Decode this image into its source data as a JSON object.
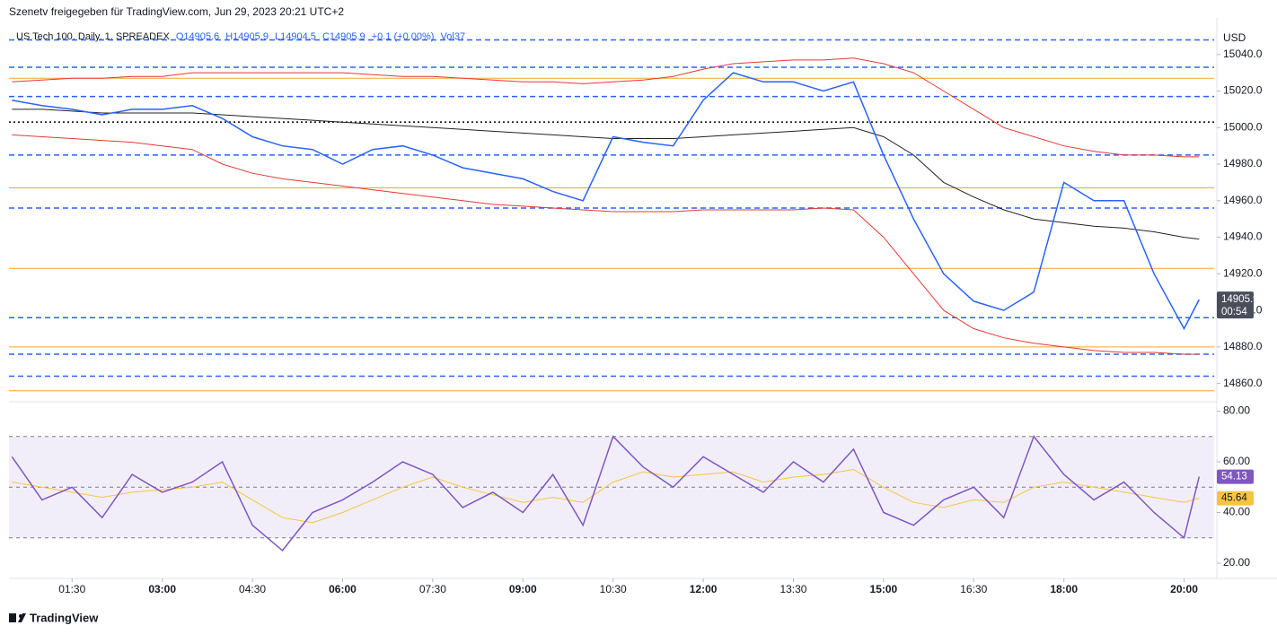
{
  "header": {
    "title": "Szenetv freigegeben für TradingView.com, Jun 29, 2023 20:21 UTC+2"
  },
  "legend": {
    "symbol": "US Tech 100, Daily, 1, SPREADEX",
    "ohlc": [
      "O14905.6",
      "H14905.9",
      "L14904.5",
      "C14905.9",
      "+0.1 (+0.00%)"
    ],
    "volume": "Vol37"
  },
  "footer": {
    "brand": "TradingView"
  },
  "chart_data": [
    {
      "type": "line",
      "unit": "USD",
      "countdown": "00:54",
      "x": [
        "00:30",
        "01:00",
        "01:30",
        "02:00",
        "02:30",
        "03:00",
        "03:30",
        "04:00",
        "04:30",
        "05:00",
        "05:30",
        "06:00",
        "06:30",
        "07:00",
        "07:30",
        "08:00",
        "08:30",
        "09:00",
        "09:30",
        "10:00",
        "10:30",
        "11:00",
        "11:30",
        "12:00",
        "12:30",
        "13:00",
        "13:30",
        "14:00",
        "14:30",
        "15:00",
        "15:30",
        "16:00",
        "16:30",
        "17:00",
        "17:30",
        "18:00",
        "18:30",
        "19:00",
        "19:30",
        "20:00",
        "20:15"
      ],
      "xlim": [
        "00:27",
        "20:30"
      ],
      "ylim": [
        14850,
        15060
      ],
      "yticks": [
        {
          "value": 14860,
          "label": "14860.0"
        },
        {
          "value": 14880,
          "label": "14880.0"
        },
        {
          "value": 14900,
          "label": "14900.0"
        },
        {
          "value": 14920,
          "label": "14920.0"
        },
        {
          "value": 14940,
          "label": "14940.0"
        },
        {
          "value": 14960,
          "label": "14960.0"
        },
        {
          "value": 14980,
          "label": "14980.0"
        },
        {
          "value": 15000,
          "label": "15000.0"
        },
        {
          "value": 15020,
          "label": "15020.0"
        },
        {
          "value": 15040,
          "label": "15040.0"
        }
      ],
      "series": [
        {
          "color": "#2962ff",
          "values": [
            15015,
            15012,
            15010,
            15007,
            15010,
            15010,
            15012,
            15005,
            14995,
            14990,
            14988,
            14980,
            14988,
            14990,
            14985,
            14978,
            14975,
            14972,
            14965,
            14960,
            14995,
            14992,
            14990,
            15015,
            15030,
            15025,
            15025,
            15020,
            15025,
            14985,
            14950,
            14920,
            14905,
            14900,
            14910,
            14970,
            14960,
            14960,
            14920,
            14890,
            14905.9
          ]
        },
        {
          "color": "#222222",
          "values": [
            15010,
            15010,
            15009,
            15008,
            15008,
            15008,
            15008,
            15007,
            15006,
            15005,
            15004,
            15003,
            15002,
            15001,
            15000,
            14999,
            14998,
            14997,
            14996,
            14995,
            14994,
            14994,
            14994,
            14995,
            14996,
            14997,
            14998,
            14999,
            15000,
            14995,
            14985,
            14970,
            14962,
            14955,
            14950,
            14948,
            14946,
            14945,
            14943,
            14940,
            14939
          ]
        },
        {
          "color": "#e53935",
          "values": [
            15025,
            15026,
            15027,
            15027,
            15028,
            15028,
            15030,
            15030,
            15030,
            15030,
            15030,
            15030,
            15029,
            15028,
            15028,
            15027,
            15026,
            15025,
            15025,
            15024,
            15025,
            15026,
            15028,
            15032,
            15035,
            15036,
            15037,
            15037,
            15038,
            15035,
            15030,
            15020,
            15010,
            15000,
            14995,
            14990,
            14987,
            14985,
            14985,
            14984,
            14984
          ]
        },
        {
          "color": "#e53935",
          "values": [
            14996,
            14995,
            14994,
            14993,
            14992,
            14990,
            14988,
            14980,
            14975,
            14972,
            14970,
            14968,
            14966,
            14964,
            14962,
            14960,
            14958,
            14957,
            14956,
            14955,
            14954,
            14954,
            14954,
            14955,
            14955,
            14955,
            14955,
            14956,
            14955,
            14940,
            14920,
            14900,
            14890,
            14885,
            14882,
            14880,
            14878,
            14877,
            14877,
            14876,
            14876
          ]
        }
      ],
      "level_lines": [
        {
          "color": "#f5a623",
          "style": "solid",
          "values": [
            15027,
            14967,
            14923,
            14880,
            14856
          ]
        },
        {
          "color": "#2962ff",
          "style": "dashed",
          "values": [
            15048,
            15033,
            15017,
            14985,
            14956,
            14896,
            14876,
            14864
          ]
        },
        {
          "color": "#000000",
          "style": "dotted",
          "values": [
            15003
          ]
        }
      ]
    },
    {
      "type": "line",
      "x": [
        "00:30",
        "01:00",
        "01:30",
        "02:00",
        "02:30",
        "03:00",
        "03:30",
        "04:00",
        "04:30",
        "05:00",
        "05:30",
        "06:00",
        "06:30",
        "07:00",
        "07:30",
        "08:00",
        "08:30",
        "09:00",
        "09:30",
        "10:00",
        "10:30",
        "11:00",
        "11:30",
        "12:00",
        "12:30",
        "13:00",
        "13:30",
        "14:00",
        "14:30",
        "15:00",
        "15:30",
        "16:00",
        "16:30",
        "17:00",
        "17:30",
        "18:00",
        "18:30",
        "19:00",
        "19:30",
        "20:00",
        "20:15"
      ],
      "xlim": [
        "00:27",
        "20:30"
      ],
      "xticks": [
        "01:30",
        "03:00",
        "04:30",
        "06:00",
        "07:30",
        "09:00",
        "10:30",
        "12:00",
        "13:30",
        "15:00",
        "16:30",
        "18:00",
        "20:00"
      ],
      "ylim": [
        14,
        83
      ],
      "yticks": [
        {
          "value": 20,
          "label": "20.00"
        },
        {
          "value": 40,
          "label": "40.00"
        },
        {
          "value": 60,
          "label": "60.00"
        },
        {
          "value": 80,
          "label": "80.00"
        }
      ],
      "band": [
        30,
        70
      ],
      "levels": [
        70,
        50,
        30
      ],
      "series": [
        {
          "color": "#7e57c2",
          "values": [
            62,
            45,
            50,
            38,
            55,
            48,
            52,
            60,
            35,
            25,
            40,
            45,
            52,
            60,
            55,
            42,
            48,
            40,
            55,
            35,
            70,
            58,
            50,
            62,
            55,
            48,
            60,
            52,
            65,
            40,
            35,
            45,
            50,
            38,
            70,
            55,
            45,
            52,
            40,
            30,
            54.13
          ]
        },
        {
          "color": "#f5c542",
          "values": [
            52,
            50,
            48,
            46,
            48,
            49,
            50,
            52,
            45,
            38,
            36,
            40,
            45,
            50,
            54,
            50,
            47,
            44,
            46,
            44,
            52,
            56,
            54,
            55,
            56,
            52,
            54,
            55,
            57,
            50,
            44,
            42,
            45,
            44,
            50,
            52,
            50,
            48,
            46,
            44,
            45.64
          ]
        }
      ]
    }
  ]
}
